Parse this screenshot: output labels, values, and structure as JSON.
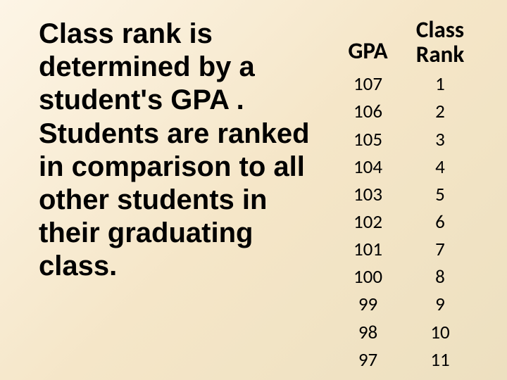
{
  "background_gradient": {
    "from": "#fdf5e6",
    "mid": "#f5e6c8",
    "to": "#ede0c0"
  },
  "text_color": "#000000",
  "body_text": {
    "content": "Class rank is determined by a student's GPA . Students are ranked in comparison to all other students in their graduating class.",
    "fontsize": 40,
    "font_weight": "bold"
  },
  "table": {
    "header": {
      "gpa_label": "GPA",
      "rank_label_line1": "Class",
      "rank_label_line2": "Rank",
      "fontsize": 33,
      "font_weight": "bold"
    },
    "row_fontsize": 27,
    "rows": [
      {
        "gpa": "107",
        "rank": "1"
      },
      {
        "gpa": "106",
        "rank": "2"
      },
      {
        "gpa": "105",
        "rank": "3"
      },
      {
        "gpa": "104",
        "rank": "4"
      },
      {
        "gpa": "103",
        "rank": "5"
      },
      {
        "gpa": "102",
        "rank": "6"
      },
      {
        "gpa": "101",
        "rank": "7"
      },
      {
        "gpa": "100",
        "rank": "8"
      },
      {
        "gpa": "99",
        "rank": "9"
      },
      {
        "gpa": "98",
        "rank": "10"
      },
      {
        "gpa": "97",
        "rank": "11"
      }
    ]
  }
}
